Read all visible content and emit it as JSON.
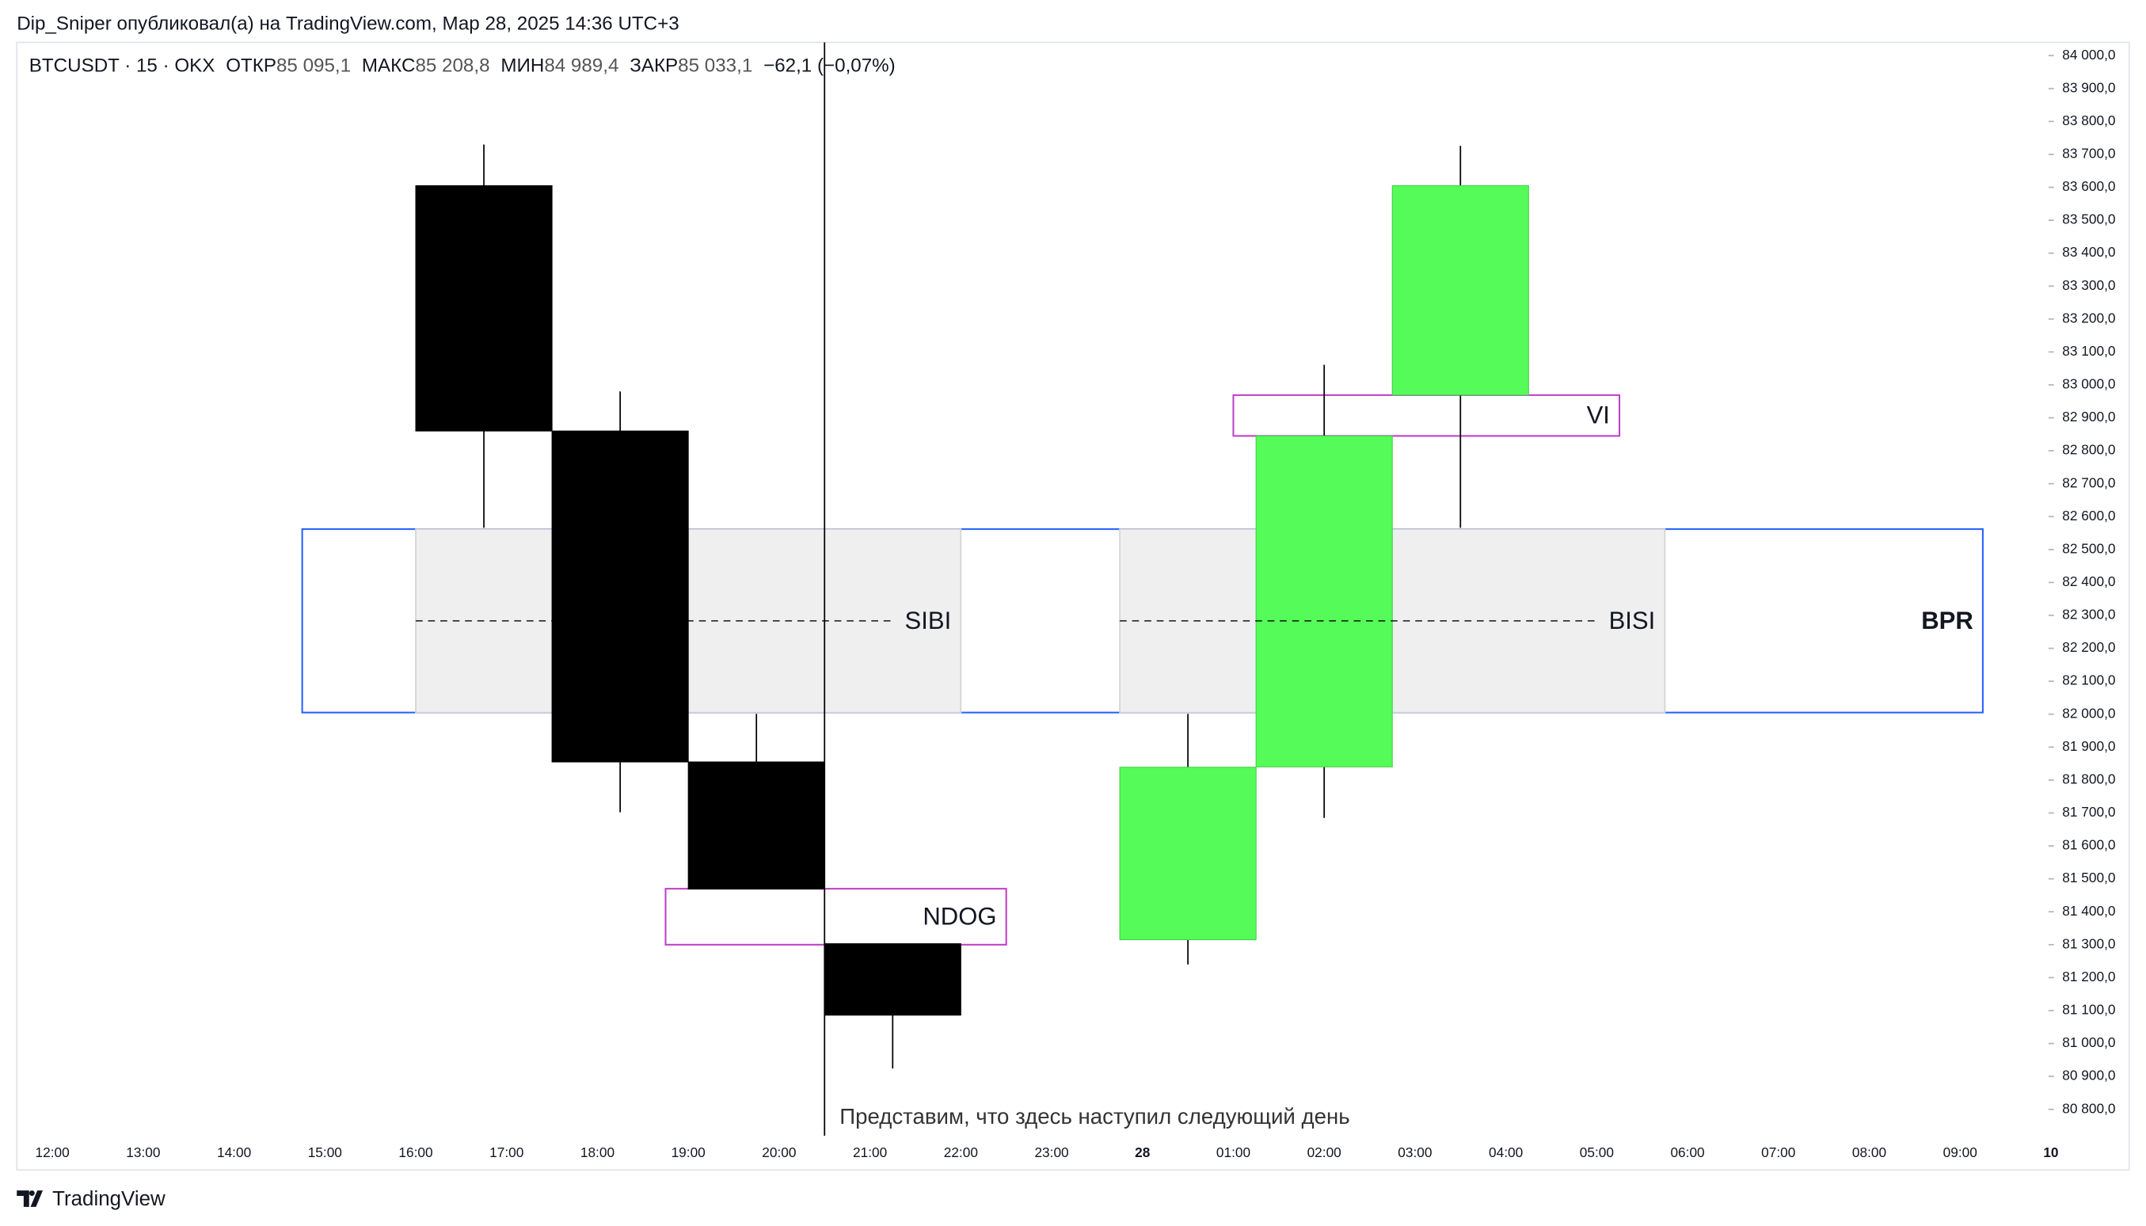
{
  "chart_data": {
    "type": "candlestick",
    "header": "Dip_Sniper опубликовал(а) на TradingView.com, Мар 28, 2025 14:36 UTC+3",
    "symbol": "BTCUSDT · 15 · OKX",
    "ohlc_labels": [
      "ОТКР",
      "МАКС",
      "МИН",
      "ЗАКР"
    ],
    "ohlc_values": [
      "85 095,1",
      "85 208,8",
      "84 989,4",
      "85 033,1"
    ],
    "change": "−62,1 (−0,07%)",
    "brand": "TradingView",
    "x": [
      "16:00",
      "17:30",
      "19:00",
      "20:30",
      "23:45",
      "01:15",
      "02:45"
    ],
    "open": [
      83605,
      82860,
      81855,
      81303,
      81315,
      81840,
      82969
    ],
    "high": [
      83730,
      82980,
      82001,
      81303,
      82001,
      83061,
      83726
    ],
    "low": [
      82566,
      81702,
      81469,
      80924,
      81240,
      81685,
      82566
    ],
    "close": [
      82860,
      81855,
      81469,
      81086,
      81839,
      82845,
      83605
    ],
    "up_color": "#55fb59",
    "down_color": "#000000",
    "ylim": [
      80720,
      84040
    ],
    "yticks": [
      {
        "value": 84000,
        "label": "84 000,0"
      },
      {
        "value": 83900,
        "label": "83 900,0"
      },
      {
        "value": 83800,
        "label": "83 800,0"
      },
      {
        "value": 83700,
        "label": "83 700,0"
      },
      {
        "value": 83600,
        "label": "83 600,0"
      },
      {
        "value": 83500,
        "label": "83 500,0"
      },
      {
        "value": 83400,
        "label": "83 400,0"
      },
      {
        "value": 83300,
        "label": "83 300,0"
      },
      {
        "value": 83200,
        "label": "83 200,0"
      },
      {
        "value": 83100,
        "label": "83 100,0"
      },
      {
        "value": 83000,
        "label": "83 000,0"
      },
      {
        "value": 82900,
        "label": "82 900,0"
      },
      {
        "value": 82800,
        "label": "82 800,0"
      },
      {
        "value": 82700,
        "label": "82 700,0"
      },
      {
        "value": 82600,
        "label": "82 600,0"
      },
      {
        "value": 82500,
        "label": "82 500,0"
      },
      {
        "value": 82400,
        "label": "82 400,0"
      },
      {
        "value": 82300,
        "label": "82 300,0"
      },
      {
        "value": 82200,
        "label": "82 200,0"
      },
      {
        "value": 82100,
        "label": "82 100,0"
      },
      {
        "value": 82000,
        "label": "82 000,0"
      },
      {
        "value": 81900,
        "label": "81 900,0"
      },
      {
        "value": 81800,
        "label": "81 800,0"
      },
      {
        "value": 81700,
        "label": "81 700,0"
      },
      {
        "value": 81600,
        "label": "81 600,0"
      },
      {
        "value": 81500,
        "label": "81 500,0"
      },
      {
        "value": 81400,
        "label": "81 400,0"
      },
      {
        "value": 81300,
        "label": "81 300,0"
      },
      {
        "value": 81200,
        "label": "81 200,0"
      },
      {
        "value": 81100,
        "label": "81 100,0"
      },
      {
        "value": 81000,
        "label": "81 000,0"
      },
      {
        "value": 80900,
        "label": "80 900,0"
      },
      {
        "value": 80800,
        "label": "80 800,0"
      }
    ],
    "xticks": [
      "12:00",
      "13:00",
      "14:00",
      "15:00",
      "16:00",
      "17:00",
      "18:00",
      "19:00",
      "20:00",
      "21:00",
      "22:00",
      "23:00",
      "28",
      "01:00",
      "02:00",
      "03:00",
      "04:00",
      "05:00",
      "06:00",
      "07:00",
      "08:00",
      "09:00",
      "10"
    ],
    "zones": [
      {
        "label": "BPR",
        "x": [
          "14:45",
          "09:15"
        ],
        "y": [
          82005,
          82562
        ],
        "stroke": "#2962ff",
        "fill": "none"
      },
      {
        "label": "SIBI",
        "x": [
          "16:00",
          "22:00"
        ],
        "y": [
          82005,
          82562
        ],
        "stroke": "#d4d4d4",
        "fill": "#efefef"
      },
      {
        "label": "BISI",
        "x": [
          "23:45",
          "05:45"
        ],
        "y": [
          82005,
          82562
        ],
        "stroke": "#d4d4d4",
        "fill": "#efefef"
      },
      {
        "label": "VI",
        "x": [
          "01:00",
          "05:15"
        ],
        "y": [
          82845,
          82969
        ],
        "stroke": "#c040c8",
        "fill": "none"
      },
      {
        "label": "NDOG",
        "x": [
          "18:45",
          "22:30"
        ],
        "y": [
          81300,
          81470
        ],
        "stroke": "#c040c8",
        "fill": "none"
      }
    ],
    "marker": {
      "x": "20:30",
      "text": "Представим, что здесь наступил следующий день"
    }
  }
}
